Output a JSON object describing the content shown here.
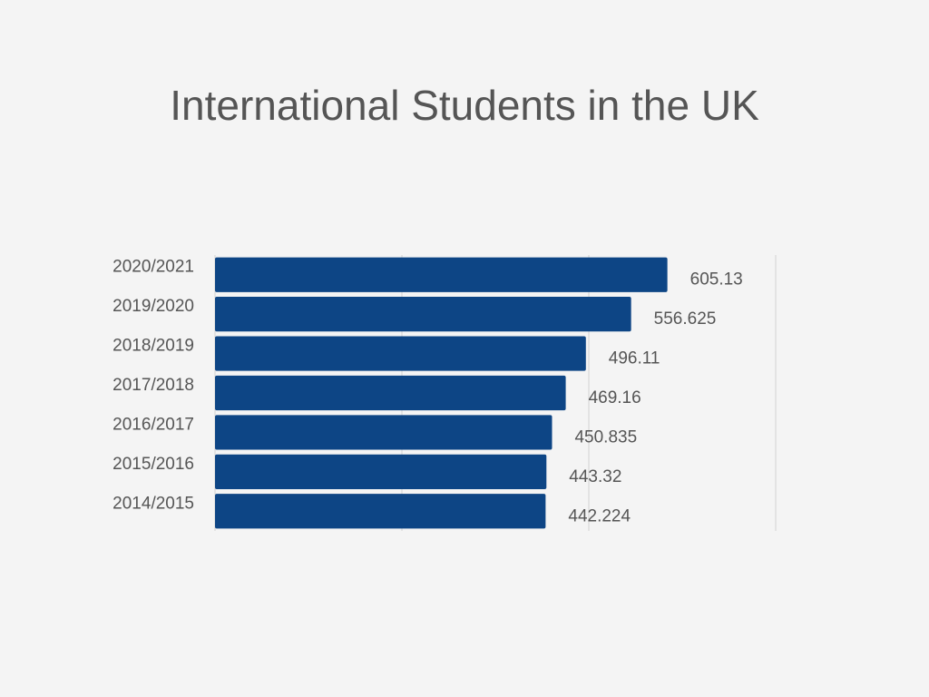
{
  "chart_data": {
    "type": "hbar",
    "title": "International Students in the UK",
    "categories": [
      "2020/2021",
      "2019/2020",
      "2018/2019",
      "2017/2018",
      "2016/2017",
      "2015/2016",
      "2014/2015"
    ],
    "values": [
      605.13,
      556.625,
      496.11,
      469.16,
      450.835,
      443.32,
      442.224
    ],
    "color": "#0d4585",
    "xlim": [
      0,
      750
    ],
    "xticks": [
      0,
      250,
      500,
      750
    ],
    "grid": true,
    "tick_labels": false
  }
}
